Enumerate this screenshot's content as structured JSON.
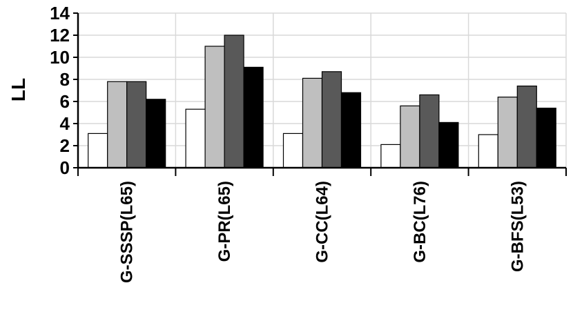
{
  "chart_data": {
    "type": "bar",
    "ylabel": "LL",
    "xlabel": "",
    "ylim": [
      0,
      14
    ],
    "yticks": [
      "0",
      "2",
      "4",
      "6",
      "8",
      "10",
      "12",
      "14"
    ],
    "grid": true,
    "legend": "none",
    "categories": [
      "G-SSSP(L65)",
      "G-PR(L65)",
      "G-CC(L64)",
      "G-BC(L76)",
      "G-BFS(L53)"
    ],
    "series": [
      {
        "color": "#ffffff",
        "values": [
          3.1,
          5.3,
          3.1,
          2.1,
          3.0
        ]
      },
      {
        "color": "#bfbfbf",
        "values": [
          7.8,
          11.0,
          8.1,
          5.6,
          6.4
        ]
      },
      {
        "color": "#595959",
        "values": [
          7.8,
          12.0,
          8.7,
          6.6,
          7.4
        ]
      },
      {
        "color": "#000000",
        "values": [
          6.2,
          9.1,
          6.8,
          4.1,
          5.4
        ]
      }
    ]
  }
}
